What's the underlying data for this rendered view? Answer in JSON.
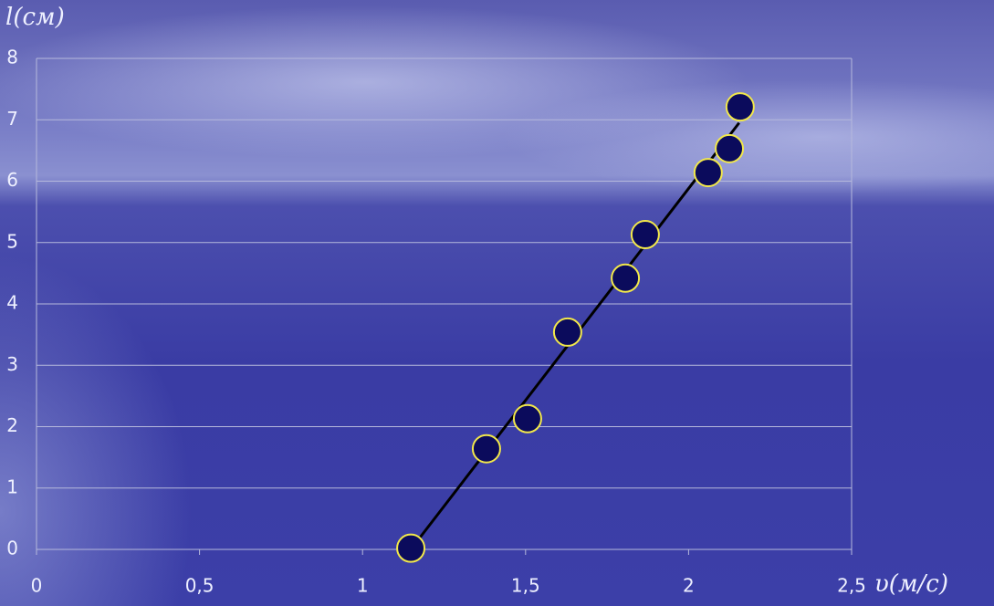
{
  "chart_data": {
    "type": "scatter",
    "y_label": "l(см)",
    "x_label": "υ(м/с)",
    "series": [
      {
        "color": "#0b0b5c",
        "edge_color": "#f2e84a",
        "x": [
          1.148,
          1.38,
          1.506,
          1.629,
          1.806,
          1.867,
          2.06,
          2.125,
          2.158
        ],
        "values": [
          0.02,
          1.64,
          2.13,
          3.54,
          4.42,
          5.13,
          6.14,
          6.53,
          7.21
        ]
      }
    ],
    "trendline": {
      "color": "#000000",
      "x": [
        1.148,
        2.155
      ],
      "values": [
        0,
        6.95
      ]
    },
    "xlim": [
      0,
      2.5
    ],
    "ylim": [
      0,
      8
    ],
    "xticks": [
      0,
      {
        "value": 0.5,
        "label": "0,5"
      },
      1,
      {
        "value": 1.5,
        "label": "1,5"
      },
      2,
      {
        "value": 2.5,
        "label": "2,5"
      }
    ],
    "yticks": [
      0,
      1,
      2,
      3,
      4,
      5,
      6,
      7,
      8
    ],
    "grid": true
  }
}
